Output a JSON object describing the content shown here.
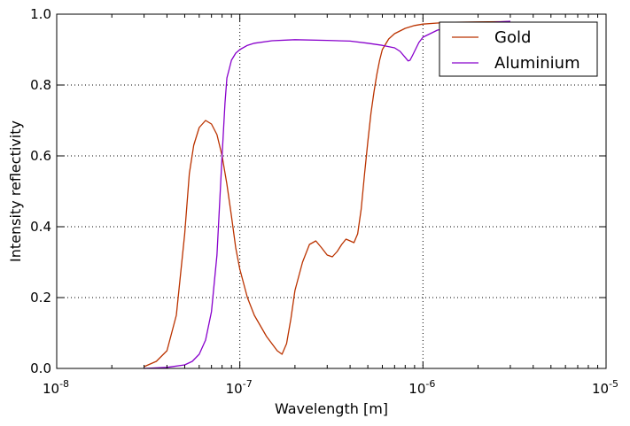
{
  "chart_data": {
    "type": "line",
    "title": "",
    "xlabel": "Wavelength [m]",
    "ylabel": "Intensity reflectivity",
    "xscale": "log",
    "xlim": [
      1e-08,
      1e-05
    ],
    "ylim": [
      0,
      1
    ],
    "grid": true,
    "legend_position": "top-right",
    "x_ticks": [
      {
        "base": "10",
        "exp": "-8"
      },
      {
        "base": "10",
        "exp": "-7"
      },
      {
        "base": "10",
        "exp": "-6"
      },
      {
        "base": "10",
        "exp": "-5"
      }
    ],
    "y_ticks": [
      "0.0",
      "0.2",
      "0.4",
      "0.6",
      "0.8",
      "1.0"
    ],
    "series": [
      {
        "name": "Gold",
        "color": "#bb3300",
        "x": [
          3e-08,
          3.5e-08,
          4e-08,
          4.5e-08,
          5e-08,
          5.3e-08,
          5.6e-08,
          6e-08,
          6.5e-08,
          7e-08,
          7.5e-08,
          8e-08,
          8.5e-08,
          9e-08,
          9.5e-08,
          1e-07,
          1.1e-07,
          1.2e-07,
          1.4e-07,
          1.6e-07,
          1.7e-07,
          1.8e-07,
          1.9e-07,
          2e-07,
          2.2e-07,
          2.4e-07,
          2.6e-07,
          2.8e-07,
          3e-07,
          3.2e-07,
          3.4e-07,
          3.6e-07,
          3.8e-07,
          4e-07,
          4.2e-07,
          4.4e-07,
          4.6e-07,
          4.8e-07,
          5e-07,
          5.2e-07,
          5.4e-07,
          5.6e-07,
          5.8e-07,
          6e-07,
          6.5e-07,
          7e-07,
          8e-07,
          9e-07,
          1e-06,
          1.2e-06,
          1.5e-06,
          2e-06,
          3e-06
        ],
        "values": [
          0.005,
          0.02,
          0.05,
          0.15,
          0.38,
          0.55,
          0.63,
          0.68,
          0.7,
          0.69,
          0.66,
          0.6,
          0.52,
          0.43,
          0.34,
          0.28,
          0.2,
          0.15,
          0.09,
          0.05,
          0.04,
          0.07,
          0.14,
          0.22,
          0.3,
          0.35,
          0.36,
          0.34,
          0.32,
          0.315,
          0.33,
          0.35,
          0.365,
          0.36,
          0.355,
          0.38,
          0.45,
          0.55,
          0.64,
          0.72,
          0.78,
          0.83,
          0.87,
          0.9,
          0.93,
          0.945,
          0.96,
          0.968,
          0.972,
          0.975,
          0.977,
          0.978,
          0.979
        ]
      },
      {
        "name": "Aluminium",
        "color": "#8800cc",
        "x": [
          3e-08,
          4e-08,
          5e-08,
          5.5e-08,
          6e-08,
          6.5e-08,
          7e-08,
          7.5e-08,
          8e-08,
          8.3e-08,
          8.5e-08,
          8.8e-08,
          9e-08,
          9.5e-08,
          1e-07,
          1.1e-07,
          1.2e-07,
          1.5e-07,
          2e-07,
          3e-07,
          4e-07,
          5e-07,
          6e-07,
          7e-07,
          7.5e-07,
          8e-07,
          8.3e-07,
          8.5e-07,
          8.8e-07,
          9.5e-07,
          1e-06,
          1.2e-06,
          1.5e-06,
          2e-06,
          3e-06
        ],
        "values": [
          0.0,
          0.003,
          0.01,
          0.02,
          0.04,
          0.08,
          0.16,
          0.32,
          0.6,
          0.75,
          0.82,
          0.85,
          0.87,
          0.89,
          0.9,
          0.912,
          0.918,
          0.925,
          0.928,
          0.926,
          0.924,
          0.918,
          0.912,
          0.905,
          0.895,
          0.878,
          0.868,
          0.87,
          0.885,
          0.92,
          0.935,
          0.955,
          0.965,
          0.975,
          0.98
        ]
      }
    ]
  }
}
